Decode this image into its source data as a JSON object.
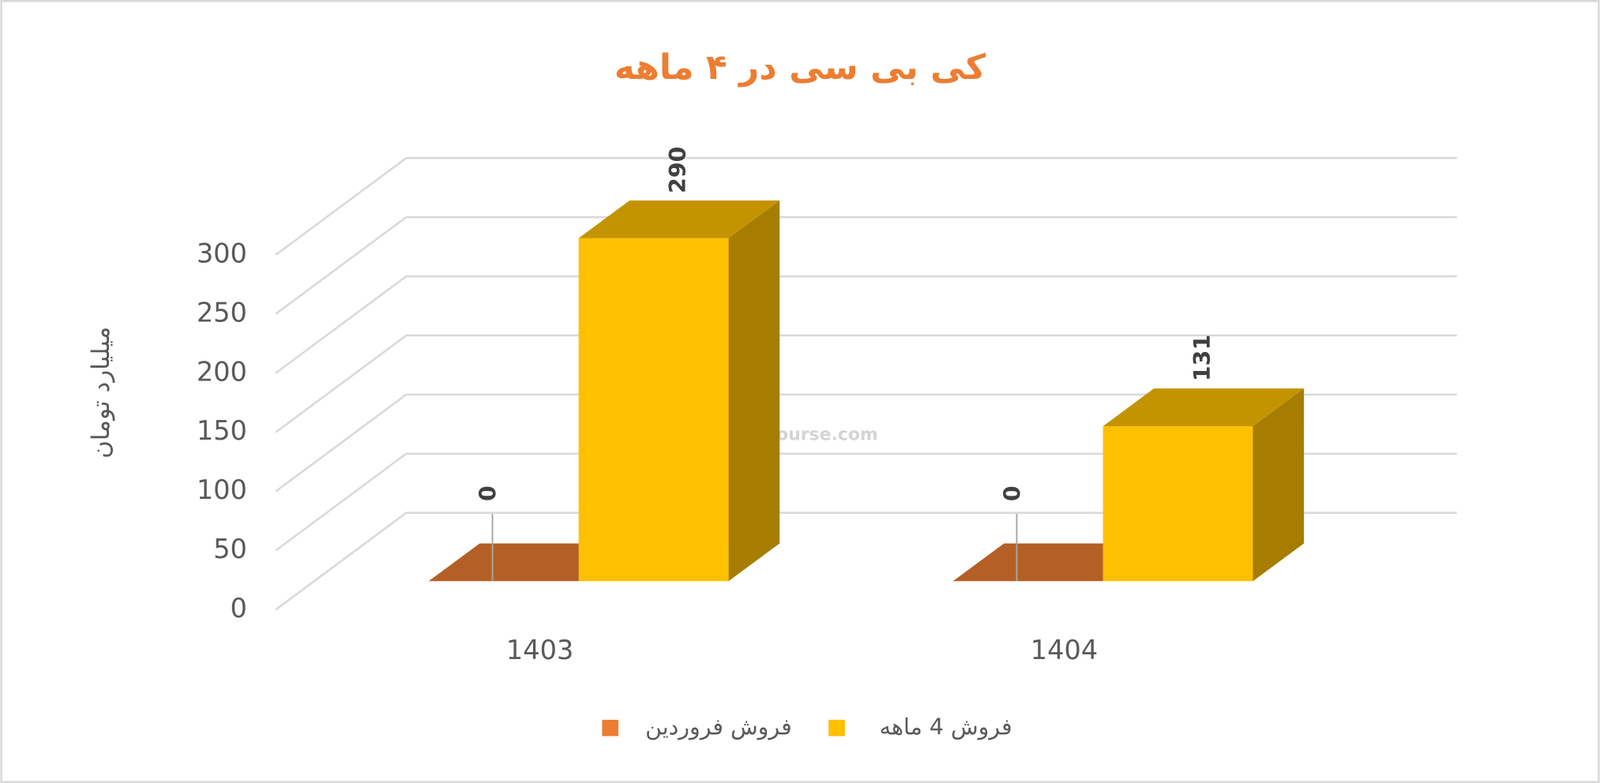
{
  "chart_data": {
    "type": "bar3d",
    "title": "کی بی سی در ۴ ماهه",
    "y_label": "میلیارد تومان",
    "categories": [
      "1403",
      "1404"
    ],
    "series": [
      {
        "name": "فروش فروردین",
        "color": "#ed7d31",
        "values": [
          0,
          0
        ]
      },
      {
        "name": "فروش 4  ماهه",
        "color": "#ffc000",
        "values": [
          290,
          131
        ]
      }
    ],
    "ylim": [
      0,
      300
    ],
    "yticks": [
      0,
      50,
      100,
      150,
      200,
      250,
      300
    ],
    "grid": true,
    "legend": "bottom",
    "watermark": "nabzebourse.com"
  }
}
